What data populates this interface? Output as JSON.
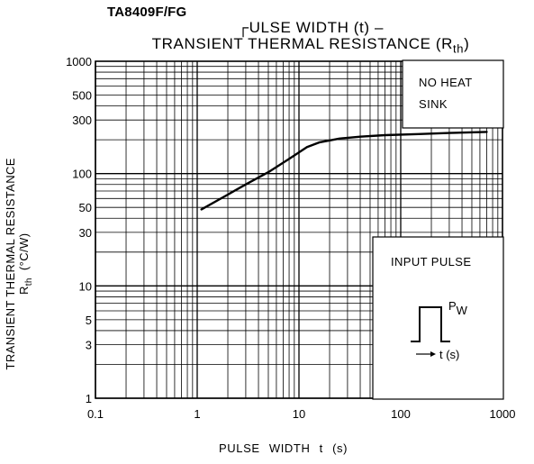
{
  "doc_id": "TA8409F/FG",
  "chart_data": {
    "type": "line",
    "title_line1": "┌ULSE WIDTH (t)  –",
    "title_line2": "TRANSIENT THERMAL RESISTANCE (R",
    "title_subscript": "th",
    "title_suffix": ")",
    "xlabel": "PULSE WIDTH   t   (s)",
    "ylabel_line1": "TRANSIENT THERMAL RESISTANCE",
    "ylabel_line2": "R",
    "ylabel_subscript": "th",
    "ylabel_line3": "(°C/W)",
    "xscale": "log",
    "yscale": "log",
    "xlim": [
      0.1,
      1000
    ],
    "ylim": [
      1,
      1000
    ],
    "x_ticks": [
      {
        "value": 0.1,
        "label": "0.1"
      },
      {
        "value": 1,
        "label": "1"
      },
      {
        "value": 10,
        "label": "10"
      },
      {
        "value": 100,
        "label": "100"
      },
      {
        "value": 1000,
        "label": "1000"
      }
    ],
    "y_ticks": [
      {
        "value": 1,
        "label": "1"
      },
      {
        "value": 3,
        "label": "3"
      },
      {
        "value": 5,
        "label": "5"
      },
      {
        "value": 10,
        "label": "10"
      },
      {
        "value": 30,
        "label": "30"
      },
      {
        "value": 50,
        "label": "50"
      },
      {
        "value": 100,
        "label": "100"
      },
      {
        "value": 300,
        "label": "300"
      },
      {
        "value": 500,
        "label": "500"
      },
      {
        "value": 1000,
        "label": "1000"
      }
    ],
    "grid": true,
    "series": [
      {
        "x": [
          1.1,
          2,
          3,
          5,
          8,
          12,
          16,
          25,
          40,
          70,
          150,
          300,
          700
        ],
        "y": [
          48,
          65,
          80,
          103,
          135,
          172,
          190,
          205,
          213,
          220,
          225,
          230,
          235
        ],
        "color": "#000000"
      }
    ],
    "annotations": {
      "no_heat_sink_line1": "NO HEAT",
      "no_heat_sink_line2": "SINK",
      "input_pulse": "INPUT PULSE",
      "pw_label": "P",
      "pw_subscript": "W",
      "time_label": "t (s)"
    }
  }
}
